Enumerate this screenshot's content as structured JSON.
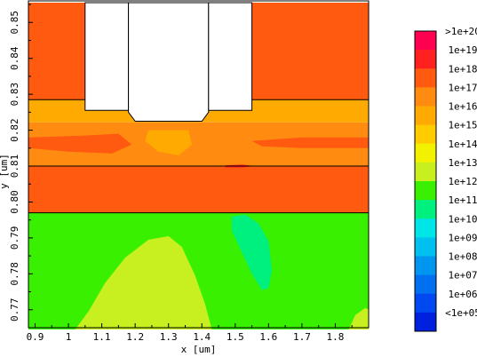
{
  "chart_data": {
    "type": "heatmap",
    "title": "",
    "xlabel": "x [um]",
    "ylabel": "y [um]",
    "xlim": [
      0.88,
      1.9
    ],
    "ylim": [
      0.765,
      0.856
    ],
    "x_ticks": [
      "0.9",
      "1",
      "1.1",
      "1.2",
      "1.3",
      "1.4",
      "1.5",
      "1.6",
      "1.7",
      "1.8"
    ],
    "x_tick_values": [
      0.9,
      1.0,
      1.1,
      1.2,
      1.3,
      1.4,
      1.5,
      1.6,
      1.7,
      1.8
    ],
    "y_ticks": [
      "0.77",
      "0.78",
      "0.79",
      "0.80",
      "0.81",
      "0.82",
      "0.83",
      "0.84",
      "0.85"
    ],
    "y_tick_values": [
      0.77,
      0.78,
      0.79,
      0.8,
      0.81,
      0.82,
      0.83,
      0.84,
      0.85
    ],
    "colorbar": {
      "labels": [
        ">1e+20",
        "1e+19",
        "1e+18",
        "1e+17",
        "1e+16",
        "1e+15",
        "1e+14",
        "1e+13",
        "1e+12",
        "1e+11",
        "1e+10",
        "1e+09",
        "1e+08",
        "1e+07",
        "1e+06",
        "<1e+05"
      ],
      "colors": [
        "#ff0050",
        "#ff2020",
        "#ff5a10",
        "#ff8c10",
        "#ffaa00",
        "#ffcc00",
        "#f2f200",
        "#c8f020",
        "#38f000",
        "#00f080",
        "#00e6e6",
        "#00c0f0",
        "#0096f0",
        "#0070f0",
        "#0048f0",
        "#0020e0"
      ]
    },
    "regions": [
      {
        "name": "top-layer",
        "color": "#ff5a10",
        "polygon": [
          [
            0.88,
            0.8555
          ],
          [
            1.05,
            0.8555
          ],
          [
            1.05,
            0.8255
          ],
          [
            1.55,
            0.8255
          ],
          [
            1.55,
            0.8555
          ],
          [
            1.9,
            0.8555
          ],
          [
            1.9,
            0.8285
          ],
          [
            0.88,
            0.8285
          ]
        ]
      },
      {
        "name": "upper-band",
        "color": "#ffaa00",
        "polygon": [
          [
            0.88,
            0.8285
          ],
          [
            1.05,
            0.8285
          ],
          [
            1.05,
            0.8255
          ],
          [
            1.55,
            0.8255
          ],
          [
            1.55,
            0.8285
          ],
          [
            1.9,
            0.8285
          ],
          [
            1.9,
            0.8222
          ],
          [
            0.88,
            0.8222
          ]
        ]
      },
      {
        "name": "mid-band",
        "color": "#ff8c10",
        "polygon": [
          [
            0.88,
            0.8222
          ],
          [
            1.9,
            0.8222
          ],
          [
            1.9,
            0.81
          ],
          [
            0.88,
            0.81
          ]
        ]
      },
      {
        "name": "lower-layer",
        "color": "#ff5a10",
        "polygon": [
          [
            0.88,
            0.81
          ],
          [
            1.9,
            0.81
          ],
          [
            1.9,
            0.797
          ],
          [
            0.88,
            0.797
          ]
        ]
      },
      {
        "name": "substrate",
        "color": "#38f000",
        "polygon": [
          [
            0.88,
            0.797
          ],
          [
            1.9,
            0.797
          ],
          [
            1.9,
            0.7645
          ],
          [
            0.88,
            0.7645
          ]
        ]
      },
      {
        "name": "lime-lobe",
        "color": "#c8f020",
        "polygon": [
          [
            1.02,
            0.7645
          ],
          [
            1.06,
            0.7695
          ],
          [
            1.11,
            0.7775
          ],
          [
            1.17,
            0.7845
          ],
          [
            1.24,
            0.7895
          ],
          [
            1.3,
            0.7905
          ],
          [
            1.34,
            0.7875
          ],
          [
            1.38,
            0.7795
          ],
          [
            1.41,
            0.7715
          ],
          [
            1.43,
            0.7645
          ]
        ]
      },
      {
        "name": "lime-corner",
        "color": "#c8f020",
        "polygon": [
          [
            1.84,
            0.7645
          ],
          [
            1.86,
            0.7685
          ],
          [
            1.89,
            0.7705
          ],
          [
            1.9,
            0.77
          ],
          [
            1.9,
            0.7645
          ]
        ]
      },
      {
        "name": "teal-lobe",
        "color": "#00f080",
        "polygon": [
          [
            1.49,
            0.796
          ],
          [
            1.53,
            0.7965
          ],
          [
            1.57,
            0.794
          ],
          [
            1.6,
            0.789
          ],
          [
            1.61,
            0.781
          ],
          [
            1.6,
            0.776
          ],
          [
            1.58,
            0.7755
          ],
          [
            1.55,
            0.78
          ],
          [
            1.52,
            0.786
          ],
          [
            1.49,
            0.792
          ]
        ]
      },
      {
        "name": "mid-light-patch",
        "color": "#ffaa00",
        "polygon": [
          [
            1.24,
            0.82
          ],
          [
            1.36,
            0.82
          ],
          [
            1.37,
            0.816
          ],
          [
            1.33,
            0.813
          ],
          [
            1.27,
            0.814
          ],
          [
            1.23,
            0.817
          ]
        ]
      },
      {
        "name": "mid-dark-streak",
        "color": "#ff5a10",
        "polygon": [
          [
            0.88,
            0.818
          ],
          [
            1.05,
            0.8185
          ],
          [
            1.15,
            0.819
          ],
          [
            1.19,
            0.816
          ],
          [
            1.13,
            0.8135
          ],
          [
            1.0,
            0.814
          ],
          [
            0.88,
            0.815
          ]
        ]
      },
      {
        "name": "right-dark-streak",
        "color": "#ff5a10",
        "polygon": [
          [
            1.55,
            0.817
          ],
          [
            1.7,
            0.818
          ],
          [
            1.9,
            0.818
          ],
          [
            1.9,
            0.815
          ],
          [
            1.7,
            0.815
          ],
          [
            1.58,
            0.8155
          ]
        ]
      },
      {
        "name": "boundary-red-spot",
        "color": "#ff2020",
        "polygon": [
          [
            1.47,
            0.8102
          ],
          [
            1.52,
            0.8104
          ],
          [
            1.56,
            0.81
          ],
          [
            1.52,
            0.8096
          ],
          [
            1.47,
            0.8096
          ]
        ]
      }
    ],
    "voids": [
      {
        "name": "gate-left",
        "polygon": [
          [
            1.05,
            0.8555
          ],
          [
            1.18,
            0.8555
          ],
          [
            1.18,
            0.8255
          ],
          [
            1.05,
            0.8255
          ]
        ]
      },
      {
        "name": "gate-center",
        "polygon": [
          [
            1.18,
            0.8555
          ],
          [
            1.42,
            0.8555
          ],
          [
            1.42,
            0.825
          ],
          [
            1.4,
            0.8225
          ],
          [
            1.2,
            0.8225
          ],
          [
            1.18,
            0.825
          ]
        ]
      },
      {
        "name": "gate-right",
        "polygon": [
          [
            1.42,
            0.8555
          ],
          [
            1.55,
            0.8555
          ],
          [
            1.55,
            0.8255
          ],
          [
            1.42,
            0.8255
          ]
        ]
      }
    ],
    "boundaries": [
      {
        "name": "interface-upper",
        "points": [
          [
            0.88,
            0.8285
          ],
          [
            1.05,
            0.8285
          ]
        ]
      },
      {
        "name": "interface-upper-right",
        "points": [
          [
            1.55,
            0.8285
          ],
          [
            1.9,
            0.8285
          ]
        ]
      },
      {
        "name": "interface-mid",
        "points": [
          [
            0.88,
            0.81
          ],
          [
            1.9,
            0.81
          ]
        ]
      },
      {
        "name": "interface-low",
        "points": [
          [
            0.88,
            0.797
          ],
          [
            1.9,
            0.797
          ]
        ]
      }
    ],
    "grid": false,
    "legend_position": "right"
  }
}
